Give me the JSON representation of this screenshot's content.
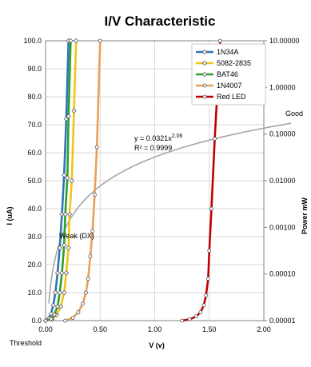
{
  "chart_data": {
    "type": "line",
    "title": "I/V Characteristic",
    "xlabel": "V (v)",
    "ylabel": "I (uA)",
    "y2label": "Power mW",
    "xlim": [
      0,
      2
    ],
    "ylim": [
      0,
      100
    ],
    "y2lim_log": [
      1e-05,
      10
    ],
    "x_ticks": [
      "0.00",
      "0.50",
      "1.00",
      "1.50",
      "2.00"
    ],
    "y_ticks": [
      "0.0",
      "10.0",
      "20.0",
      "30.0",
      "40.0",
      "50.0",
      "60.0",
      "70.0",
      "80.0",
      "90.0",
      "100.0"
    ],
    "y2_ticks": [
      "0.00001",
      "0.00010",
      "0.00100",
      "0.01000",
      "0.10000",
      "1.00000",
      "10.00000"
    ],
    "grid": true,
    "legend_position": "top-right",
    "series": [
      {
        "name": "1N34A",
        "color": "#2e75b6",
        "marker": "diamond",
        "x": [
          0.0,
          0.03,
          0.05,
          0.07,
          0.09,
          0.11,
          0.13,
          0.15,
          0.17,
          0.19,
          0.21
        ],
        "y": [
          0.0,
          0.8,
          2.5,
          5.5,
          10.0,
          17.0,
          26.0,
          38.0,
          52.0,
          72.0,
          100.0
        ]
      },
      {
        "name": "5082-2835",
        "color": "#f0c419",
        "marker": "diamond",
        "x": [
          0.0,
          0.06,
          0.1,
          0.14,
          0.17,
          0.19,
          0.21,
          0.22,
          0.24,
          0.26,
          0.28
        ],
        "y": [
          0.0,
          0.5,
          2.0,
          5.0,
          10.0,
          17.0,
          26.0,
          38.0,
          50.0,
          75.0,
          100.0
        ]
      },
      {
        "name": "BAT46",
        "color": "#2ca02c",
        "marker": "diamond",
        "x": [
          0.0,
          0.05,
          0.08,
          0.11,
          0.13,
          0.15,
          0.17,
          0.18,
          0.2,
          0.21,
          0.23
        ],
        "y": [
          0.0,
          0.6,
          2.2,
          5.0,
          10.0,
          17.0,
          27.0,
          38.0,
          51.0,
          73.0,
          100.0
        ]
      },
      {
        "name": "1N4007",
        "color": "#e8a05c",
        "marker": "circle",
        "x": [
          0.18,
          0.25,
          0.3,
          0.34,
          0.37,
          0.39,
          0.41,
          0.43,
          0.45,
          0.47,
          0.5
        ],
        "y": [
          0.0,
          1.0,
          3.0,
          6.0,
          10.0,
          15.0,
          23.0,
          32.0,
          45.0,
          62.0,
          100.0
        ]
      },
      {
        "name": "Red LED",
        "color": "#c00000",
        "marker": "circle",
        "x": [
          1.25,
          1.32,
          1.38,
          1.42,
          1.45,
          1.47,
          1.49,
          1.5,
          1.52,
          1.55,
          1.6
        ],
        "y": [
          0.0,
          0.5,
          1.5,
          3.0,
          5.5,
          9.0,
          15.0,
          25.0,
          40.0,
          65.0,
          100.0
        ]
      }
    ],
    "power_curve": {
      "color": "#a6a6a6",
      "exponent": 2.06,
      "coefficient": 0.0321
    },
    "annotations": {
      "equation_main": "y = 0.0321x",
      "equation_exp": "2.06",
      "r_squared": "R² = 0.9999",
      "good": "Good",
      "weak": "Weak (DX)",
      "threshold": "Threshold"
    },
    "colors": {
      "plot_bg": "#ffffff",
      "grid": "#d9d9d9",
      "axis": "#808080"
    }
  }
}
